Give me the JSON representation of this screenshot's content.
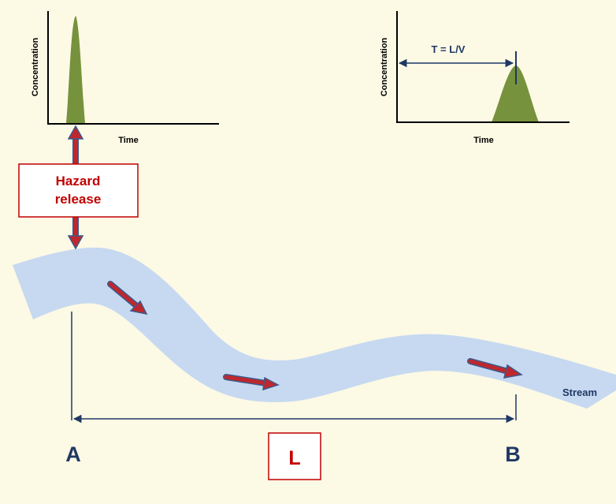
{
  "chart_left": {
    "ylabel": "Concentration",
    "xlabel": "Time"
  },
  "chart_right": {
    "ylabel": "Concentration",
    "xlabel": "Time",
    "annotation": "T = L/V"
  },
  "hazard_box": {
    "line1": "Hazard",
    "line2": "release"
  },
  "stream_label": "Stream",
  "point_a": "A",
  "point_b": "B",
  "distance_label": "L",
  "colors": {
    "background": "#fcf9e5",
    "stream": "#c6d9f1",
    "peak": "#76923c",
    "arrow_fill": "#c0272d",
    "arrow_outline": "#3b5a8a",
    "dark_blue": "#1f3864",
    "hazard_red": "#c00000"
  }
}
